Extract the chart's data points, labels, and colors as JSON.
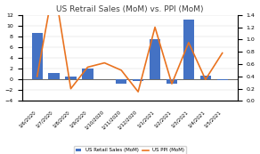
{
  "title": "US Retrail Sales (MoM) vs. PPI (MoM)",
  "x_labels": [
    "1/6/2020",
    "1/7/2020",
    "1/8/2020",
    "1/9/2020",
    "1/10/2020",
    "1/11/2020",
    "1/12/2020",
    "1/1/2021",
    "1/2/2021",
    "1/3/2021",
    "1/4/2021",
    "1/5/2021"
  ],
  "bar_values": [
    8.7,
    1.2,
    0.6,
    2.0,
    0.1,
    -0.8,
    -0.3,
    7.5,
    -0.8,
    11.2,
    0.7,
    -0.2
  ],
  "line_values": [
    0.4,
    1.9,
    0.2,
    0.55,
    0.62,
    0.5,
    0.15,
    1.2,
    0.28,
    0.95,
    0.35,
    0.78
  ],
  "bar_color": "#4472C4",
  "line_color": "#E97320",
  "ylim_left": [
    -4,
    12
  ],
  "ylim_right": [
    0,
    1.4
  ],
  "yticks_left": [
    -4,
    -2,
    0,
    2,
    4,
    6,
    8,
    10,
    12
  ],
  "yticks_right": [
    0.0,
    0.2,
    0.4,
    0.6,
    0.8,
    1.0,
    1.2,
    1.4
  ],
  "legend_labels": [
    "US Retail Sales (MoM)",
    "US PPI (MoM)"
  ],
  "bg_color": "#FFFFFF",
  "title_fontsize": 6.5,
  "tick_labelsize": 4.5,
  "legend_fontsize": 4.0
}
